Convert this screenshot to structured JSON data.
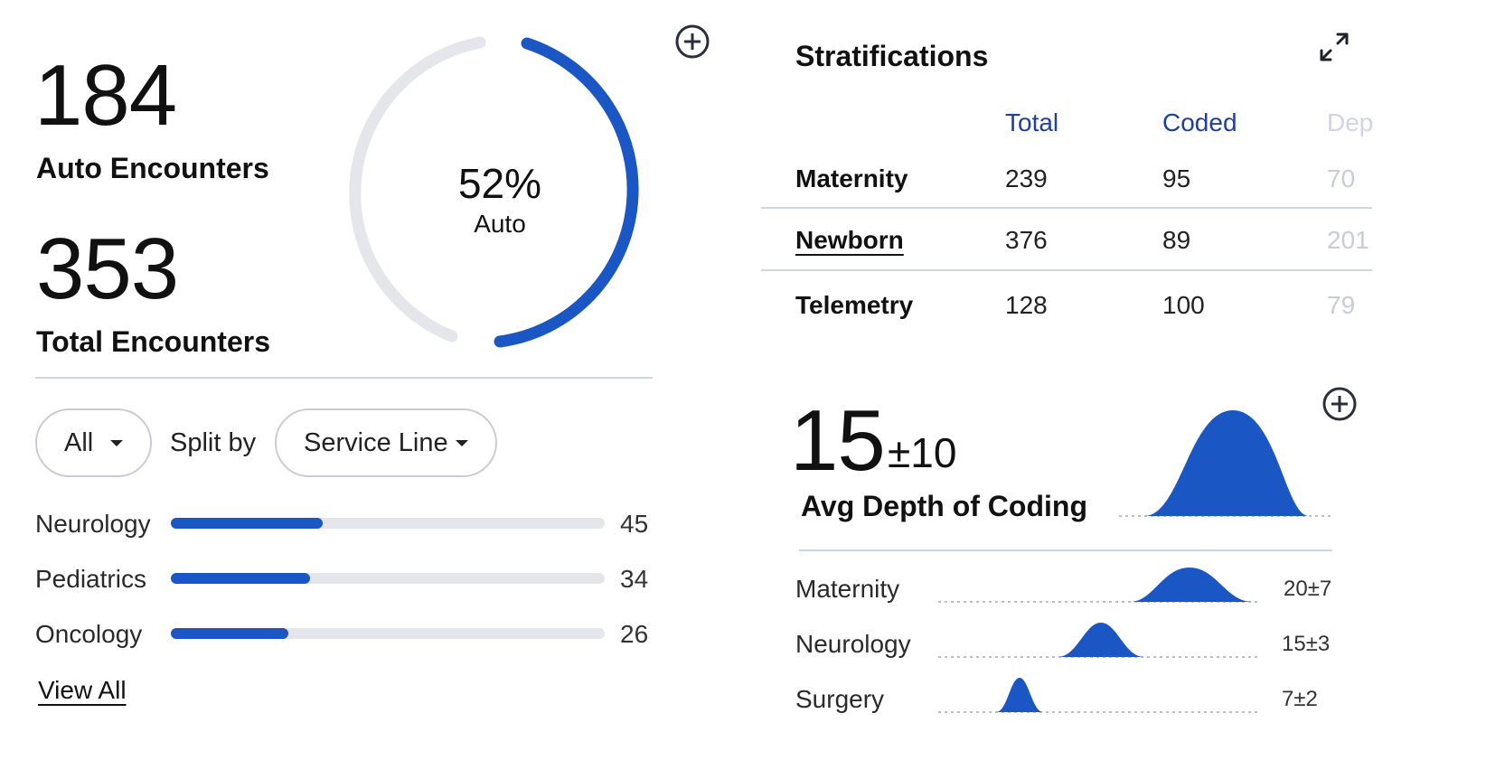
{
  "summary": {
    "auto_count": "184",
    "auto_label": "Auto Encounters",
    "total_count": "353",
    "total_label": "Total Encounters",
    "gauge_value": "52%",
    "gauge_label": "Auto",
    "gauge_fraction": 0.52
  },
  "filters": {
    "scope_value": "All",
    "split_label": "Split by",
    "split_value": "Service Line"
  },
  "service_lines": [
    {
      "label": "Neurology",
      "value": "45",
      "fraction": 0.35
    },
    {
      "label": "Pediatrics",
      "value": "34",
      "fraction": 0.32
    },
    {
      "label": "Oncology",
      "value": "26",
      "fraction": 0.27
    }
  ],
  "view_all_label": "View All",
  "stratifications": {
    "title": "Stratifications",
    "columns": [
      "Total",
      "Coded",
      "Dep"
    ],
    "rows": [
      {
        "label": "Maternity",
        "cells": [
          "239",
          "95",
          "70"
        ]
      },
      {
        "label": "Newborn",
        "cells": [
          "376",
          "89",
          "201"
        ]
      },
      {
        "label": "Telemetry",
        "cells": [
          "128",
          "100",
          "79"
        ]
      }
    ]
  },
  "depth": {
    "value": "15",
    "spread": "±10",
    "label": "Avg Depth of Coding",
    "items": [
      {
        "label": "Maternity",
        "value": "20±7"
      },
      {
        "label": "Neurology",
        "value": "15±3"
      },
      {
        "label": "Surgery",
        "value": "7±2"
      }
    ]
  },
  "colors": {
    "accent": "#1a56c4",
    "track": "#e4e6eb",
    "header": "#1f3f9e"
  },
  "icons": [
    "plus-circle-icon",
    "expand-icon",
    "chevron-down-icon"
  ]
}
